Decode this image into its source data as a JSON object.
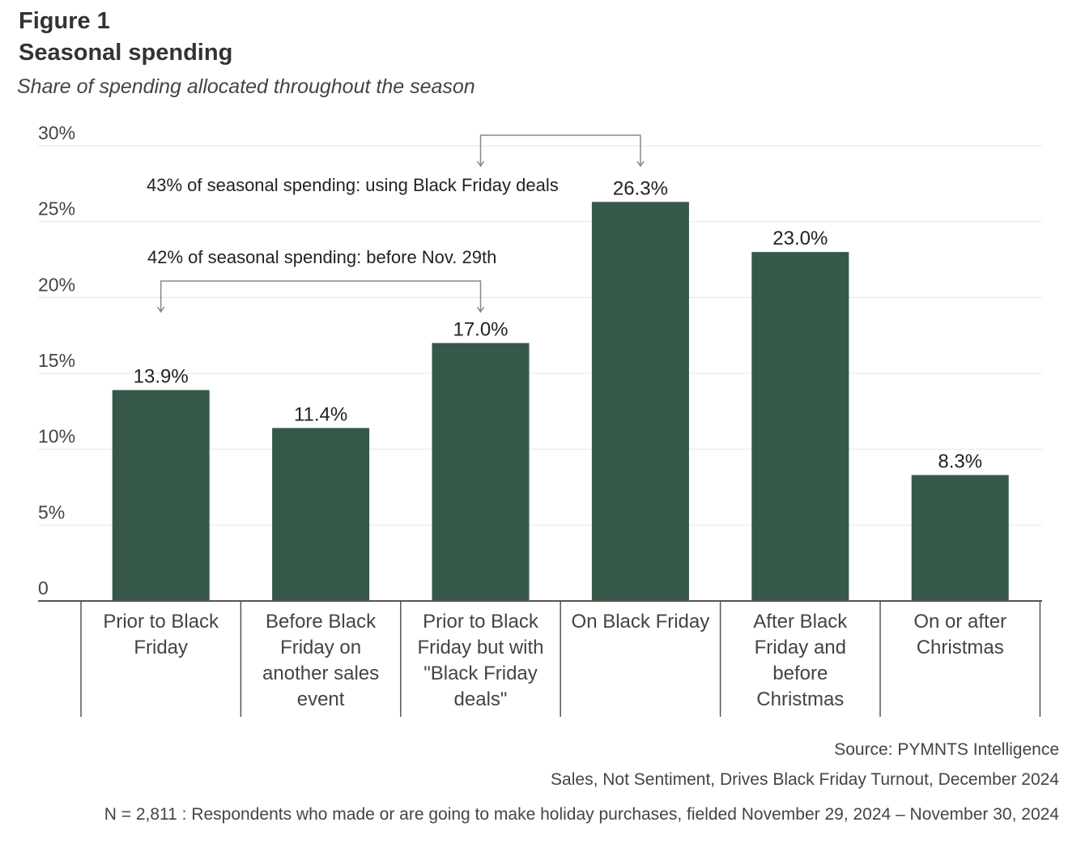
{
  "header": {
    "figure_label": "Figure 1",
    "title": "Seasonal spending",
    "subtitle": "Share of spending allocated throughout the season"
  },
  "chart_data": {
    "type": "bar",
    "title": "Seasonal spending",
    "subtitle": "Share of spending allocated throughout the season",
    "categories": [
      [
        "Prior to Black",
        "Friday"
      ],
      [
        "Before Black",
        "Friday on",
        "another sales",
        "event"
      ],
      [
        "Prior to Black",
        "Friday but with",
        "\"Black Friday",
        "deals\""
      ],
      [
        "On Black Friday"
      ],
      [
        "After Black",
        "Friday and",
        "before",
        "Christmas"
      ],
      [
        "On or after",
        "Christmas"
      ]
    ],
    "values": [
      13.9,
      11.4,
      17.0,
      26.3,
      23.0,
      8.3
    ],
    "data_labels": [
      "13.9%",
      "11.4%",
      "17.0%",
      "26.3%",
      "23.0%",
      "8.3%"
    ],
    "ylim": [
      0,
      30
    ],
    "yticks": [
      0,
      5,
      10,
      15,
      20,
      25,
      30
    ],
    "ytick_labels": [
      "0",
      "5%",
      "10%",
      "15%",
      "20%",
      "25%",
      "30%"
    ],
    "grid": true,
    "bar_color": "#365848",
    "annotations": [
      {
        "text": "43% of seasonal spending: using Black Friday deals",
        "from_category": 2,
        "to_category": 3
      },
      {
        "text": "42% of seasonal spending: before Nov. 29th",
        "from_category": 0,
        "to_category": 2
      }
    ]
  },
  "footer": {
    "source": "Source: PYMNTS Intelligence",
    "report": "Sales, Not Sentiment, Drives Black Friday Turnout, December 2024",
    "note": "N = 2,811 : Respondents who made or are going to make holiday purchases, fielded November 29, 2024 – November 30, 2024"
  },
  "colors": {
    "bar": "#365848",
    "grid": "#e6e6e6",
    "axis": "#555555",
    "annotation": "#888888",
    "text": "#222222"
  }
}
